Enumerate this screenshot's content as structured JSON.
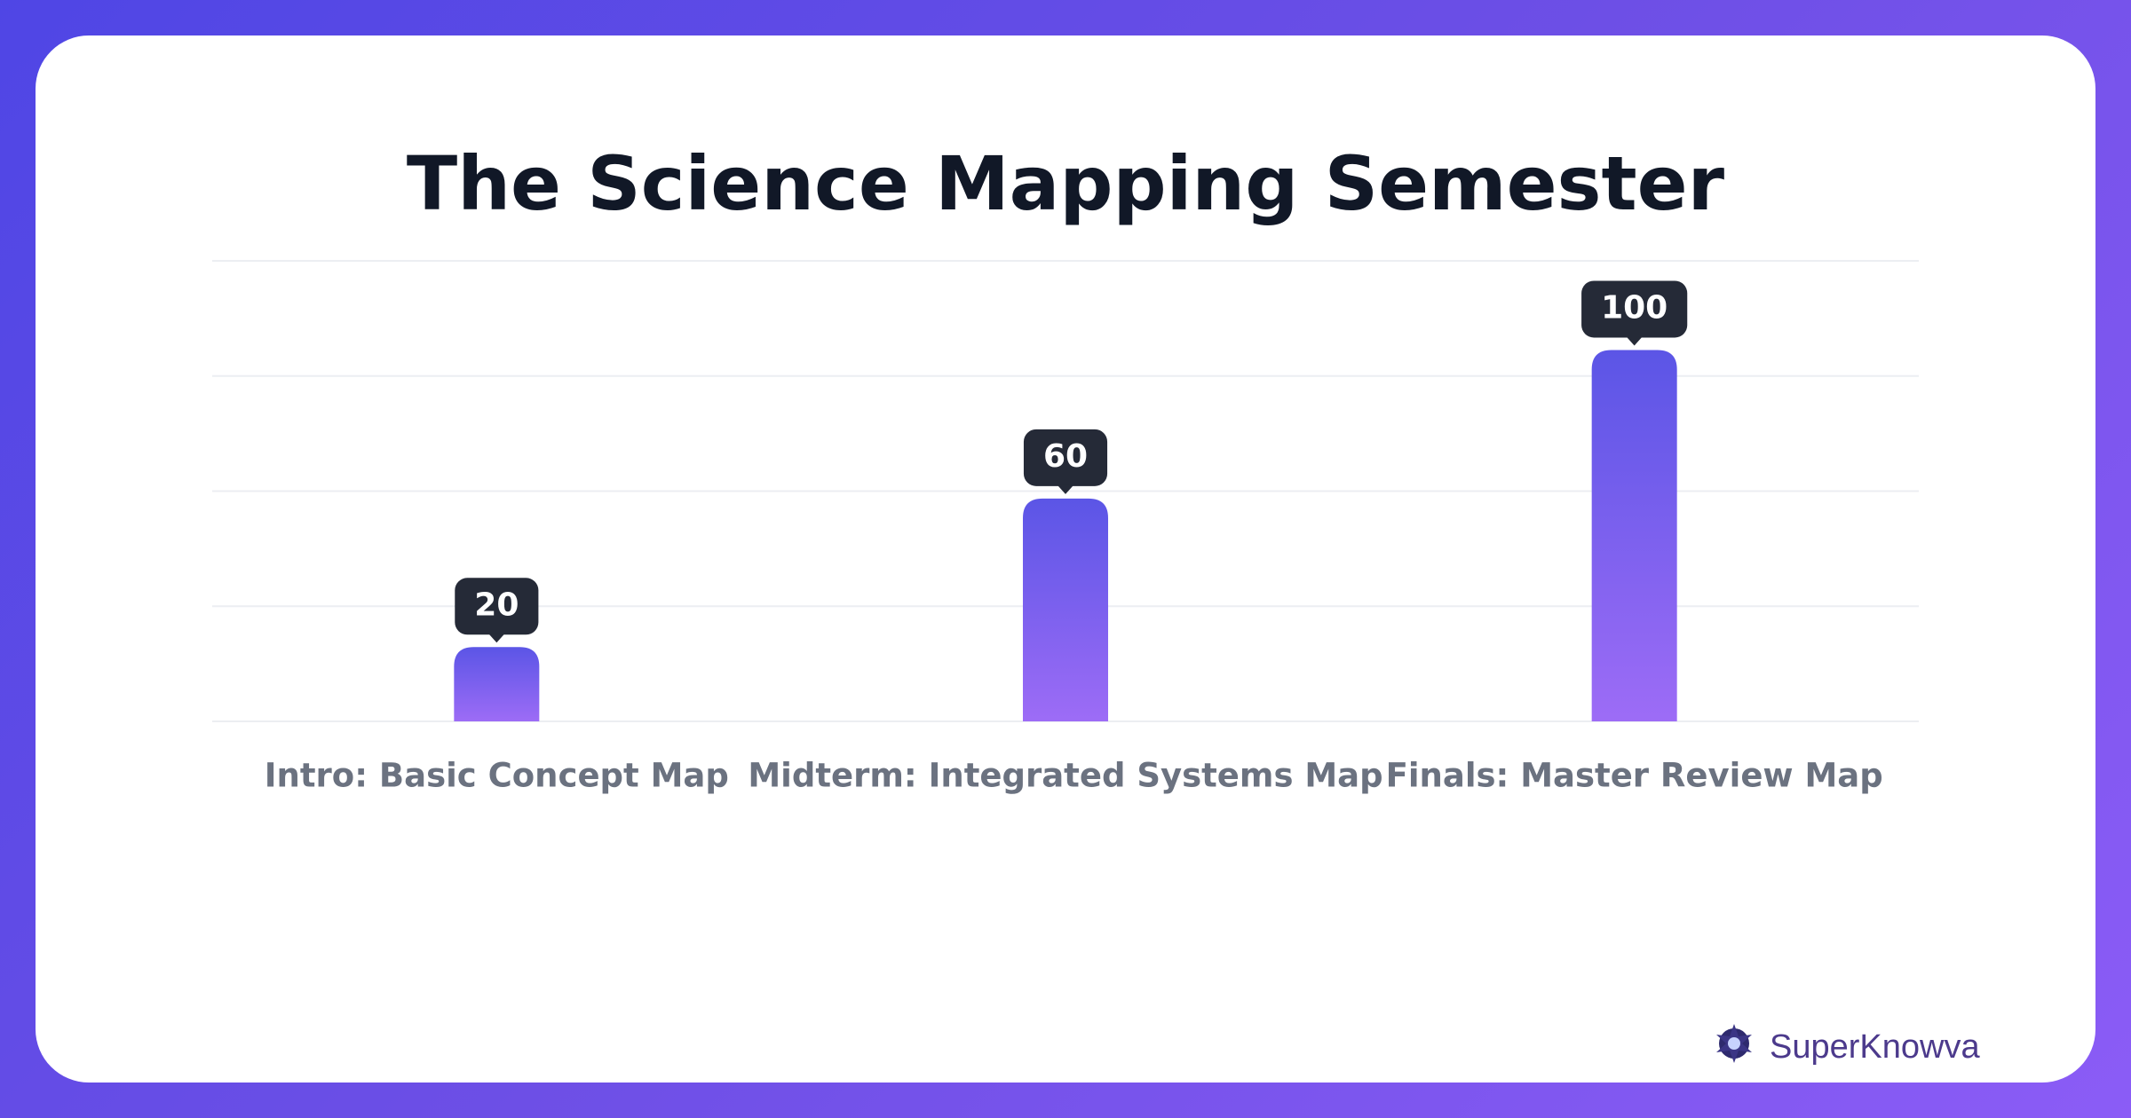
{
  "chart_data": {
    "type": "bar",
    "title": "The Science Mapping Semester",
    "categories": [
      "Intro: Basic Concept Map",
      "Midterm: Integrated Systems Map",
      "Finals: Master Review Map"
    ],
    "values": [
      20,
      60,
      100
    ],
    "color": [
      "#5b55e6",
      "#9d6cf6"
    ],
    "ylim": [
      0,
      124
    ],
    "grid": true
  },
  "brand": "SuperKnowva"
}
